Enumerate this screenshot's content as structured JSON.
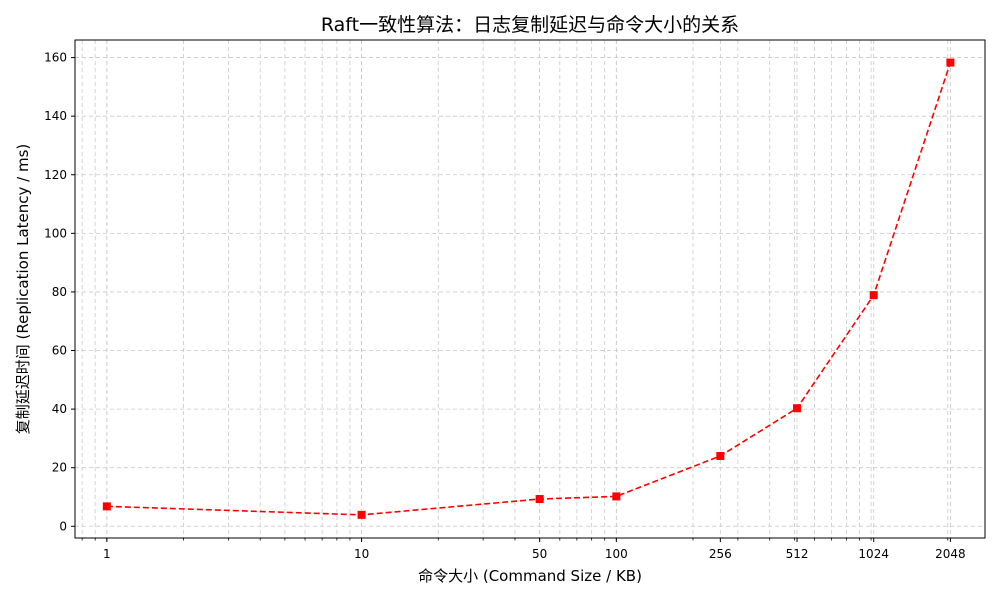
{
  "chart_data": {
    "type": "line",
    "title": "Raft一致性算法：日志复制延迟与命令大小的关系",
    "xlabel": "命令大小 (Command Size / KB)",
    "ylabel": "复制延迟时间 (Replication Latency / ms)",
    "x_scale": "log",
    "xlim": [
      0.75,
      2800
    ],
    "ylim": [
      -4,
      166
    ],
    "x_ticks": [
      1,
      10,
      50,
      100,
      256,
      512,
      1024,
      2048
    ],
    "x_tick_labels": [
      "1",
      "10",
      "50",
      "100",
      "256",
      "512",
      "1024",
      "2048"
    ],
    "y_ticks": [
      0,
      20,
      40,
      60,
      80,
      100,
      120,
      140,
      160
    ],
    "y_tick_labels": [
      "0",
      "20",
      "40",
      "60",
      "80",
      "100",
      "120",
      "140",
      "160"
    ],
    "grid": true,
    "series": [
      {
        "color": "#ff0000",
        "line_style": "dashed",
        "marker": "square",
        "x": [
          1,
          10,
          50,
          100,
          256,
          512,
          1024,
          2048
        ],
        "y": [
          6.8,
          3.9,
          9.3,
          10.2,
          24.0,
          40.3,
          78.9,
          158.3
        ]
      }
    ]
  }
}
